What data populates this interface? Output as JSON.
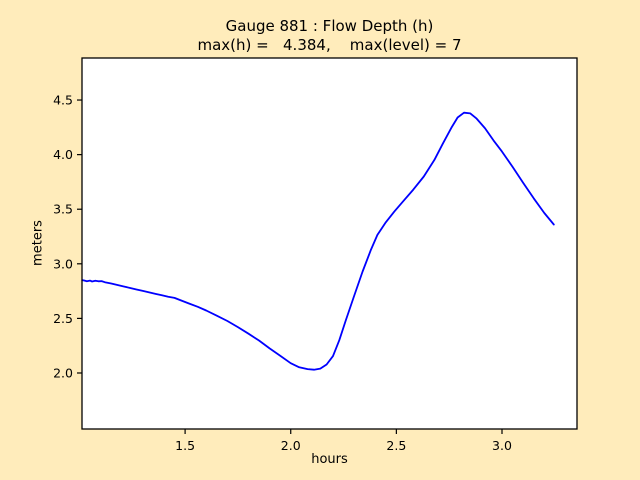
{
  "figure": {
    "background": "#ffecbb",
    "plot_background": "#ffffff",
    "frame_color": "#000000",
    "text_color": "#000000"
  },
  "chart_data": {
    "type": "line",
    "title_line1": "Gauge 881 : Flow Depth (h)",
    "title_line2": "max(h) =   4.384,    max(level) = 7",
    "max_h": 4.384,
    "max_level": 7,
    "xlabel": "hours",
    "ylabel": "meters",
    "xlim": [
      1.012,
      3.355
    ],
    "ylim": [
      1.487,
      4.885
    ],
    "xticks": [
      1.5,
      2.0,
      2.5,
      3.0
    ],
    "xtick_labels": [
      "1.5",
      "2.0",
      "2.5",
      "3.0"
    ],
    "yticks": [
      2.0,
      2.5,
      3.0,
      3.5,
      4.0,
      4.5
    ],
    "ytick_labels": [
      "2.0",
      "2.5",
      "3.0",
      "3.5",
      "4.0",
      "4.5"
    ],
    "grid": false,
    "legend": null,
    "line_color": "#0000ff",
    "series": [
      {
        "name": "flow-depth-h",
        "x": [
          1.013,
          1.02,
          1.035,
          1.05,
          1.06,
          1.075,
          1.09,
          1.105,
          1.12,
          1.15,
          1.18,
          1.21,
          1.24,
          1.27,
          1.3,
          1.33,
          1.36,
          1.39,
          1.42,
          1.45,
          1.48,
          1.52,
          1.56,
          1.6,
          1.65,
          1.7,
          1.75,
          1.8,
          1.85,
          1.9,
          1.95,
          2.0,
          2.04,
          2.08,
          2.11,
          2.14,
          2.17,
          2.2,
          2.23,
          2.26,
          2.3,
          2.34,
          2.38,
          2.41,
          2.45,
          2.49,
          2.53,
          2.58,
          2.63,
          2.68,
          2.72,
          2.76,
          2.79,
          2.82,
          2.85,
          2.88,
          2.92,
          2.96,
          3.0,
          3.05,
          3.1,
          3.15,
          3.2,
          3.245
        ],
        "y": [
          2.85,
          2.848,
          2.84,
          2.846,
          2.838,
          2.845,
          2.84,
          2.842,
          2.832,
          2.82,
          2.806,
          2.792,
          2.778,
          2.765,
          2.752,
          2.738,
          2.724,
          2.712,
          2.698,
          2.688,
          2.665,
          2.636,
          2.606,
          2.572,
          2.525,
          2.476,
          2.42,
          2.36,
          2.298,
          2.225,
          2.158,
          2.09,
          2.052,
          2.036,
          2.03,
          2.04,
          2.078,
          2.155,
          2.3,
          2.48,
          2.705,
          2.93,
          3.13,
          3.265,
          3.38,
          3.478,
          3.568,
          3.68,
          3.8,
          3.952,
          4.1,
          4.245,
          4.34,
          4.384,
          4.378,
          4.33,
          4.24,
          4.13,
          4.028,
          3.888,
          3.742,
          3.6,
          3.465,
          3.36
        ]
      }
    ]
  }
}
